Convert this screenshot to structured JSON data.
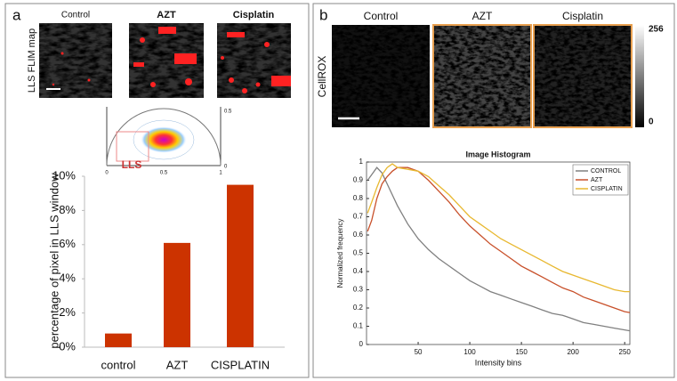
{
  "figure": {
    "panel_a": {
      "letter": "a",
      "image_labels": [
        "Control",
        "AZT",
        "Cisplatin"
      ],
      "row_label": "LLS FLIM map",
      "phasor": {
        "x_labels": [
          "0",
          "0.5",
          "1"
        ],
        "y_labels": [
          "0.5",
          "0"
        ],
        "window_label": "LLS"
      }
    },
    "panel_b": {
      "letter": "b",
      "image_labels": [
        "Control",
        "AZT",
        "Cisplatin"
      ],
      "row_label": "CellROX",
      "colorbar_labels": [
        "256",
        "0"
      ]
    }
  },
  "chart_data": [
    {
      "type": "bar",
      "ylabel": "percentage of pixel in LLS window",
      "categories": [
        "control",
        "AZT",
        "CISPLATIN"
      ],
      "values": [
        0.8,
        6.1,
        9.5
      ],
      "color": "#cc3300",
      "ylim": [
        0,
        10
      ],
      "yticks": [
        {
          "value": 0,
          "label": "0%"
        },
        {
          "value": 2,
          "label": "2%"
        },
        {
          "value": 4,
          "label": "4%"
        },
        {
          "value": 6,
          "label": "6%"
        },
        {
          "value": 8,
          "label": "8%"
        },
        {
          "value": 10,
          "label": "10%"
        }
      ],
      "grid": false
    },
    {
      "type": "line",
      "title": "Image Histogram",
      "xlabel": "Intensity bins",
      "ylabel": "Normalized frequency",
      "x": [
        1,
        5,
        10,
        15,
        20,
        25,
        30,
        40,
        50,
        60,
        70,
        80,
        90,
        100,
        110,
        120,
        130,
        140,
        150,
        160,
        170,
        180,
        190,
        200,
        210,
        220,
        230,
        240,
        250,
        255
      ],
      "series": [
        {
          "name": "CONTROL",
          "color": "#808080",
          "values": [
            0.9,
            0.93,
            0.97,
            0.94,
            0.88,
            0.82,
            0.76,
            0.66,
            0.58,
            0.52,
            0.47,
            0.43,
            0.39,
            0.35,
            0.32,
            0.29,
            0.27,
            0.25,
            0.23,
            0.21,
            0.19,
            0.17,
            0.16,
            0.14,
            0.12,
            0.11,
            0.1,
            0.09,
            0.08,
            0.075
          ]
        },
        {
          "name": "AZT",
          "color": "#c8502a",
          "values": [
            0.62,
            0.68,
            0.8,
            0.88,
            0.92,
            0.95,
            0.97,
            0.97,
            0.95,
            0.9,
            0.84,
            0.78,
            0.71,
            0.65,
            0.6,
            0.55,
            0.51,
            0.47,
            0.43,
            0.4,
            0.37,
            0.34,
            0.31,
            0.29,
            0.26,
            0.24,
            0.22,
            0.2,
            0.18,
            0.175
          ]
        },
        {
          "name": "CISPLATIN",
          "color": "#e8b830",
          "values": [
            0.72,
            0.78,
            0.86,
            0.93,
            0.97,
            0.99,
            0.97,
            0.96,
            0.95,
            0.92,
            0.87,
            0.82,
            0.76,
            0.7,
            0.66,
            0.62,
            0.58,
            0.55,
            0.52,
            0.49,
            0.46,
            0.43,
            0.4,
            0.38,
            0.36,
            0.34,
            0.32,
            0.3,
            0.29,
            0.29
          ]
        }
      ],
      "xlim": [
        0,
        255
      ],
      "xticks": [
        50,
        100,
        150,
        200,
        250
      ],
      "ylim": [
        0,
        1
      ],
      "yticks": [
        0,
        0.1,
        0.2,
        0.3,
        0.4,
        0.5,
        0.6,
        0.7,
        0.8,
        0.9,
        1
      ],
      "legend": "upper right"
    }
  ]
}
